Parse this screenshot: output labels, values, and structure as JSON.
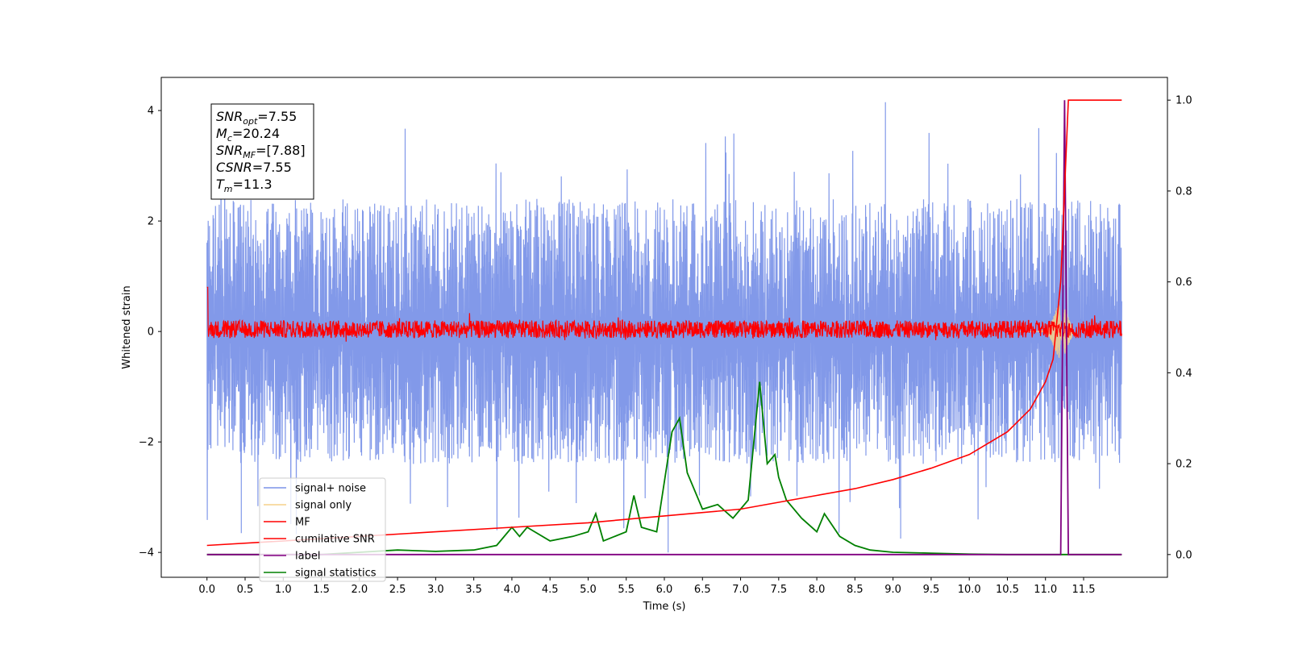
{
  "chart_data": {
    "type": "line",
    "xlabel": "Time (s)",
    "ylabel": "Whitened strain",
    "xlim": [
      -0.6,
      12.6
    ],
    "ylim": [
      -4.45,
      4.6
    ],
    "ylim_right": [
      -0.05,
      1.05
    ],
    "x_ticks": [
      "0.0",
      "0.5",
      "1.0",
      "1.5",
      "2.0",
      "2.5",
      "3.0",
      "3.5",
      "4.0",
      "4.5",
      "5.0",
      "5.5",
      "6.0",
      "6.5",
      "7.0",
      "7.5",
      "8.0",
      "8.5",
      "9.0",
      "9.5",
      "10.0",
      "10.5",
      "11.0",
      "11.5"
    ],
    "y_ticks_left": [
      "4",
      "2",
      "0",
      "−2",
      "−4"
    ],
    "y_ticks_right": [
      "1.0",
      "0.8",
      "0.6",
      "0.4",
      "0.2",
      "0.0"
    ],
    "info_box": [
      {
        "name": "SNR",
        "sub": "opt",
        "value": "=7.55"
      },
      {
        "name": "M",
        "sub": "c",
        "value": "=20.24"
      },
      {
        "name": "SNR",
        "sub": "MF",
        "value": "=[7.88]"
      },
      {
        "name": "CSNR",
        "sub": "",
        "value": "=7.55"
      },
      {
        "name": "T",
        "sub": "m",
        "value": "=11.3"
      }
    ],
    "legend": {
      "placement": "lower-left",
      "entries": [
        {
          "label": "signal+ noise",
          "color": "#7b93e8"
        },
        {
          "label": "signal only",
          "color": "#f6d08a"
        },
        {
          "label": "MF",
          "color": "#ff0000"
        },
        {
          "label": "cumilative SNR",
          "color": "#ff0000"
        },
        {
          "label": "label",
          "color": "#800080"
        },
        {
          "label": "signal statistics",
          "color": "#008000"
        }
      ]
    },
    "series": [
      {
        "name": "signal+ noise",
        "axis": "left",
        "color": "#7b93e8",
        "description": "noise band approx -2.5 to 2.8 with spikes to 4.2, sampled 0 to 12 s"
      },
      {
        "name": "signal only",
        "axis": "left",
        "color": "#f6d08a",
        "chirp_peak_time": 11.2,
        "chirp_peak_amp": 0.5
      },
      {
        "name": "MF",
        "axis": "left",
        "color": "#ff0000",
        "description": "matched filter output band approx -0.2 to 0.3"
      },
      {
        "name": "cumilative SNR",
        "axis": "right",
        "color": "#ff0000",
        "x": [
          0.0,
          1.0,
          2.0,
          3.0,
          4.0,
          5.0,
          6.0,
          7.0,
          8.0,
          8.5,
          9.0,
          9.5,
          10.0,
          10.5,
          10.8,
          11.0,
          11.1,
          11.2,
          11.3,
          12.0
        ],
        "y": [
          0.02,
          0.03,
          0.04,
          0.05,
          0.06,
          0.07,
          0.085,
          0.1,
          0.13,
          0.145,
          0.165,
          0.19,
          0.22,
          0.27,
          0.32,
          0.38,
          0.43,
          0.6,
          1.0,
          1.0
        ]
      },
      {
        "name": "label",
        "axis": "right",
        "color": "#800080",
        "x": [
          0.0,
          11.2,
          11.25,
          11.3,
          12.0
        ],
        "y": [
          0.0,
          0.0,
          1.0,
          0.0,
          0.0
        ]
      },
      {
        "name": "signal statistics",
        "axis": "right",
        "color": "#008000",
        "x": [
          0.0,
          0.5,
          1.0,
          1.5,
          2.0,
          2.5,
          3.0,
          3.5,
          3.8,
          4.0,
          4.1,
          4.2,
          4.5,
          4.8,
          5.0,
          5.1,
          5.2,
          5.5,
          5.6,
          5.7,
          5.9,
          6.1,
          6.2,
          6.3,
          6.5,
          6.7,
          6.9,
          7.0,
          7.1,
          7.25,
          7.35,
          7.45,
          7.5,
          7.6,
          7.8,
          8.0,
          8.1,
          8.3,
          8.5,
          8.7,
          9.0,
          9.5,
          10.0,
          10.5,
          11.0,
          11.5,
          12.0
        ],
        "y": [
          0.0,
          0.0,
          0.0,
          0.0,
          0.005,
          0.01,
          0.007,
          0.01,
          0.02,
          0.06,
          0.04,
          0.06,
          0.03,
          0.04,
          0.05,
          0.09,
          0.03,
          0.05,
          0.13,
          0.06,
          0.05,
          0.27,
          0.3,
          0.18,
          0.1,
          0.11,
          0.08,
          0.1,
          0.12,
          0.38,
          0.2,
          0.22,
          0.17,
          0.12,
          0.08,
          0.05,
          0.09,
          0.04,
          0.02,
          0.01,
          0.005,
          0.003,
          0.001,
          0.0,
          0.0,
          0.0,
          0.0
        ]
      }
    ]
  }
}
